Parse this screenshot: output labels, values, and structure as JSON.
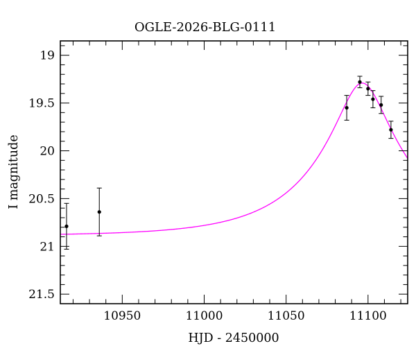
{
  "chart_data": {
    "type": "line",
    "title": "OGLE-2026-BLG-0111",
    "xlabel": "HJD - 2450000",
    "ylabel": "I magnitude",
    "x_range": [
      10912.2,
      11124.2
    ],
    "y_range_mag": [
      18.85,
      21.6
    ],
    "y_axis_inverted": true,
    "grid": false,
    "legend": "none",
    "x_major_ticks": [
      10950,
      11000,
      11050,
      11100
    ],
    "x_tick_labels": [
      "10950",
      "11000",
      "11050",
      "11100"
    ],
    "x_minor_step": 10,
    "y_major_ticks": [
      19,
      19.5,
      20,
      20.5,
      21,
      21.5
    ],
    "y_tick_labels": [
      "19",
      "19.5",
      "20",
      "20.5",
      "21",
      "21.5"
    ],
    "y_minor_step": 0.1,
    "curve_color": "#ff00ff",
    "point_color": "#000000",
    "frame_color": "#000000",
    "photometry_points": [
      {
        "hjd": 10916,
        "mag": 20.79,
        "err": 0.24
      },
      {
        "hjd": 10936,
        "mag": 20.64,
        "err": 0.25
      },
      {
        "hjd": 11087,
        "mag": 19.55,
        "err": 0.13
      },
      {
        "hjd": 11095,
        "mag": 19.28,
        "err": 0.06
      },
      {
        "hjd": 11100,
        "mag": 19.35,
        "err": 0.07
      },
      {
        "hjd": 11103,
        "mag": 19.46,
        "err": 0.09
      },
      {
        "hjd": 11108,
        "mag": 19.52,
        "err": 0.09
      },
      {
        "hjd": 11114,
        "mag": 19.78,
        "err": 0.09
      }
    ],
    "model": {
      "type": "paczynski",
      "I0_baseline_mag": 20.89,
      "t0_peak_hjd": 11096.5,
      "tE_days": 59.5,
      "u0": 0.234,
      "peak_mag": 19.29
    }
  }
}
